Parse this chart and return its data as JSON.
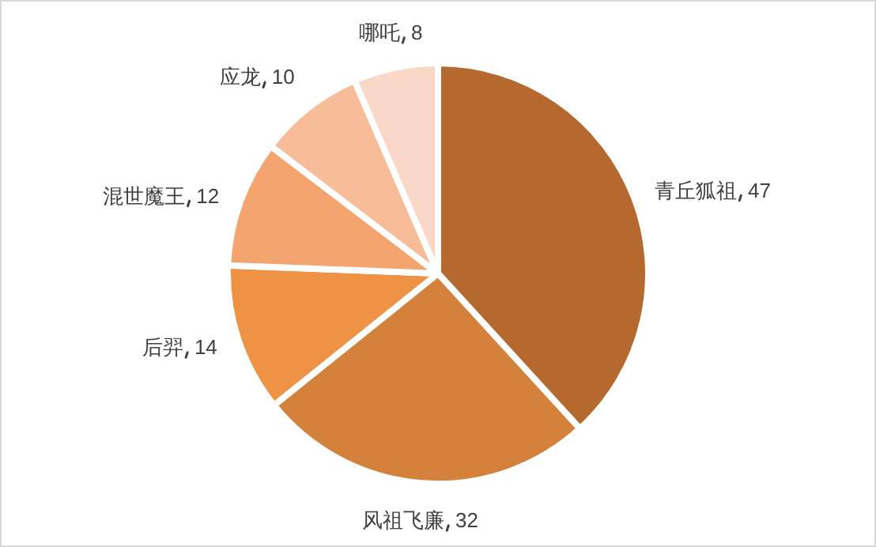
{
  "chart_data": {
    "type": "pie",
    "categories": [
      "青丘狐祖",
      "风祖飞廉",
      "后羿",
      "混世魔王",
      "应龙",
      "哪吒"
    ],
    "values": [
      47,
      32,
      14,
      12,
      10,
      8
    ],
    "colors": [
      "#b5692f",
      "#d4813c",
      "#ee9245",
      "#f4a56f",
      "#f7bd99",
      "#f9d8c8"
    ],
    "data_labels": true
  }
}
